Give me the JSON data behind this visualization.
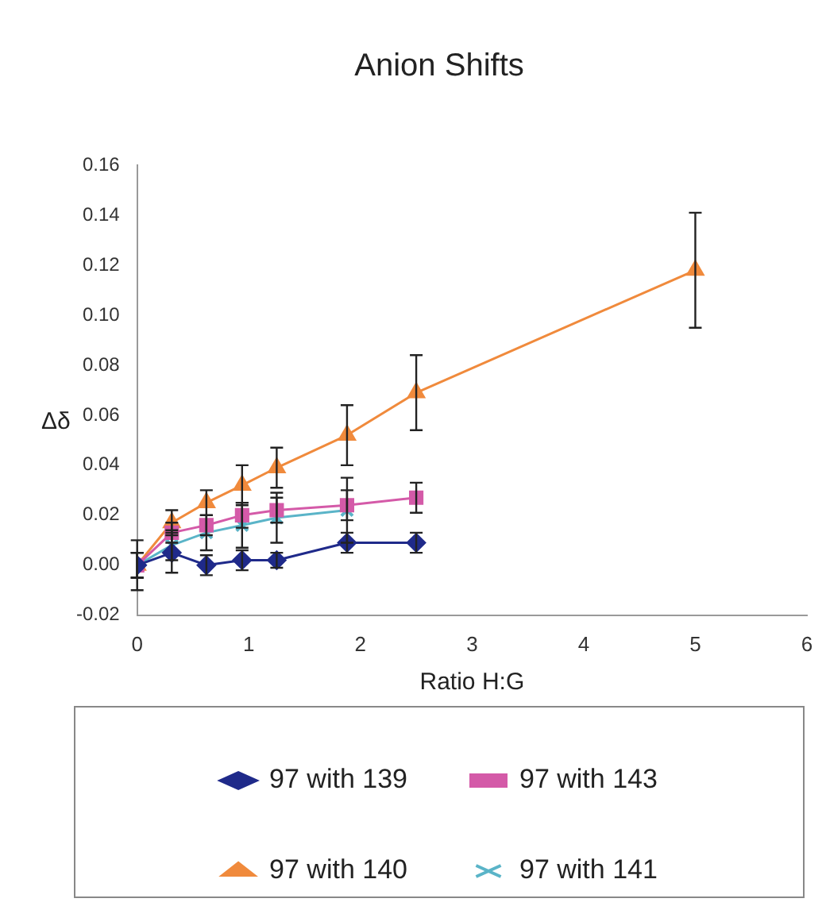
{
  "chart_data": {
    "type": "line",
    "title": "Anion Shifts",
    "xlabel": "Ratio H:G",
    "ylabel": "Δδ",
    "xlim": [
      0,
      6
    ],
    "xticks": [
      0,
      1,
      2,
      3,
      4,
      5,
      6
    ],
    "ylim": [
      -0.02,
      0.16
    ],
    "yticks": [
      -0.02,
      {
        "value": 0,
        "label": "0.00"
      },
      0.02,
      0.04,
      0.06,
      0.08,
      {
        "value": 0.1,
        "label": "0.10"
      },
      0.12,
      0.14,
      0.16
    ],
    "grid": false,
    "legend": "bottom",
    "line_style": "solid",
    "series": [
      {
        "name": "97 with 139",
        "color": "#1f2a8a",
        "marker": "diamond",
        "x": [
          0,
          0.31,
          0.62,
          0.94,
          1.25,
          1.88,
          2.5
        ],
        "values": [
          0,
          0.005,
          0,
          0.002,
          0.002,
          0.009,
          0.009
        ],
        "errors": [
          0.01,
          0.008,
          0.004,
          0.004,
          0.003,
          0.004,
          0.004
        ]
      },
      {
        "name": "97 with 143",
        "color": "#d45aa8",
        "marker": "square",
        "x": [
          0,
          0.31,
          0.62,
          0.94,
          1.25,
          1.88,
          2.5
        ],
        "values": [
          0,
          0.013,
          0.016,
          0.02,
          0.022,
          0.024,
          0.027
        ],
        "errors": [
          0.005,
          0.004,
          0.004,
          0.005,
          0.005,
          0.006,
          0.006
        ]
      },
      {
        "name": "97 with 140",
        "color": "#f08a3c",
        "marker": "triangle",
        "x": [
          0,
          0.31,
          0.62,
          0.94,
          1.25,
          1.88,
          2.5,
          5
        ],
        "values": [
          0,
          0.017,
          0.025,
          0.032,
          0.039,
          0.052,
          0.069,
          0.118
        ],
        "errors": [
          0.005,
          0.005,
          0.005,
          0.008,
          0.008,
          0.012,
          0.015,
          0.023
        ]
      },
      {
        "name": "97 with 141",
        "color": "#5ab4c8",
        "marker": "cross",
        "x": [
          0,
          0.31,
          0.62,
          0.94,
          1.25,
          1.88
        ],
        "values": [
          0,
          0.008,
          0.013,
          0.016,
          0.019,
          0.022
        ],
        "errors": [
          0.005,
          0.006,
          0.007,
          0.009,
          0.01,
          0.013
        ]
      }
    ]
  }
}
